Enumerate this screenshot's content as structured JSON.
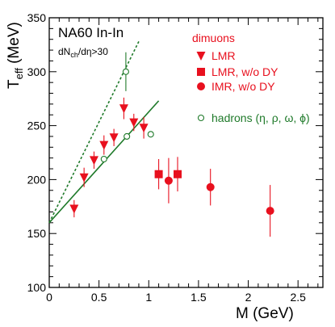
{
  "chart_data": {
    "type": "scatter",
    "xlabel": "M (GeV)",
    "ylabel": "T",
    "ylabel_sub": "eff",
    "ylabel_unit": " (MeV)",
    "xlim": [
      0,
      2.75
    ],
    "ylim": [
      100,
      350
    ],
    "xticks": [
      0,
      0.5,
      1,
      1.5,
      2,
      2.5
    ],
    "xtick_labels": [
      "0",
      "0.5",
      "1",
      "1.5",
      "2",
      "2.5"
    ],
    "yticks": [
      100,
      150,
      200,
      250,
      300,
      350
    ],
    "ytick_labels": [
      "100",
      "150",
      "200",
      "250",
      "300",
      "350"
    ],
    "annotations": {
      "system": "NA60 In-In",
      "cut_main": "dN",
      "cut_sub": "ch",
      "cut_rest": "/dη>30",
      "group_title": "dimuons"
    },
    "colors": {
      "red": "#e8101e",
      "green": "#1f7a2a",
      "frame": "#000000"
    },
    "series": [
      {
        "name": "LMR",
        "marker": "triangle-down",
        "color": "#e8101e",
        "x": [
          0.25,
          0.35,
          0.45,
          0.55,
          0.65,
          0.75,
          0.85,
          0.95
        ],
        "y": [
          173,
          202,
          218,
          232,
          239,
          266,
          253,
          248
        ],
        "err": [
          8,
          9,
          8,
          9,
          8,
          10,
          8,
          10
        ]
      },
      {
        "name": "LMR, w/o DY",
        "marker": "square",
        "color": "#e8101e",
        "x": [
          1.1,
          1.29
        ],
        "y": [
          205,
          205
        ],
        "err": [
          14,
          16
        ]
      },
      {
        "name": "IMR,  w/o DY",
        "marker": "circle",
        "color": "#e8101e",
        "x": [
          1.2,
          1.62,
          2.22
        ],
        "y": [
          199,
          193,
          171
        ],
        "err": [
          21,
          17,
          24
        ]
      },
      {
        "name": "hadrons (η, ρ, ω, ϕ)",
        "marker": "open-circle",
        "color": "#1f7a2a",
        "x": [
          0.55,
          0.77,
          0.78,
          1.02
        ],
        "y": [
          219,
          300,
          240,
          242
        ],
        "err": [
          0,
          18,
          0,
          0
        ]
      }
    ],
    "fit_lines": [
      {
        "style": "dashed",
        "color": "#1f7a2a",
        "x": [
          0,
          0.9
        ],
        "y": [
          160,
          328
        ]
      },
      {
        "style": "solid",
        "color": "#1f7a2a",
        "x": [
          0,
          1.1
        ],
        "y": [
          160,
          273
        ]
      }
    ]
  }
}
